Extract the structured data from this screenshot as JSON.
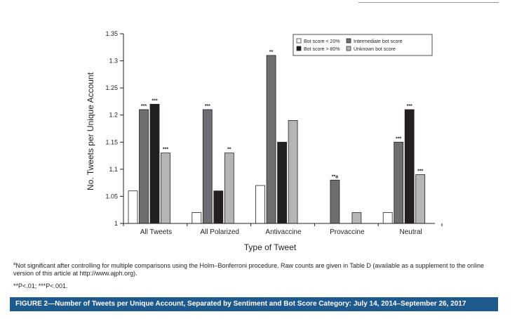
{
  "chart_data": {
    "type": "bar",
    "title": "",
    "xlabel": "Type of Tweet",
    "ylabel": "No. Tweets per Unique Account",
    "ylim": [
      1,
      1.35
    ],
    "yticks": [
      "1",
      "1.05",
      "1.1",
      "1.15",
      "1.2",
      "1.25",
      "1.3",
      "1.35"
    ],
    "grid": false,
    "legend_position": "top-right",
    "categories": [
      "All Tweets",
      "All Polarized",
      "Antivaccine",
      "Provaccine",
      "Neutral"
    ],
    "series": [
      {
        "name": "Bot score < 20%",
        "color": "#ffffff",
        "values": [
          1.06,
          1.02,
          1.07,
          null,
          1.02
        ],
        "annotations": [
          "",
          "",
          "",
          "",
          ""
        ]
      },
      {
        "name": "Intermediate bot score",
        "color": "#6d6e71",
        "values": [
          1.21,
          1.21,
          1.31,
          1.08,
          1.15
        ],
        "annotations": [
          "***",
          "***",
          "**",
          "**a",
          "***"
        ]
      },
      {
        "name": "Bot score > 80%",
        "color": "#231f20",
        "values": [
          1.22,
          1.06,
          1.15,
          null,
          1.21
        ],
        "annotations": [
          "***",
          "",
          "",
          "",
          "***"
        ]
      },
      {
        "name": "Unknown bot score",
        "color": "#b4b5b7",
        "values": [
          1.13,
          1.13,
          1.19,
          1.02,
          1.09
        ],
        "annotations": [
          "***",
          "**",
          "",
          "",
          "***"
        ]
      }
    ]
  },
  "footnotes": {
    "marker": "a",
    "line1": "Not significant after controlling for multiple comparisons using the Holm–Bonferroni procedure. Raw counts are given in Table D (available as a supplement to the online version of this article at http://www.ajph.org).",
    "line2": "**P<.01; ***P<.001."
  },
  "caption": "FIGURE 2—Number of Tweets per Unique Account, Separated by Sentiment and Bot Score Category: July 14, 2014–September 26, 2017"
}
